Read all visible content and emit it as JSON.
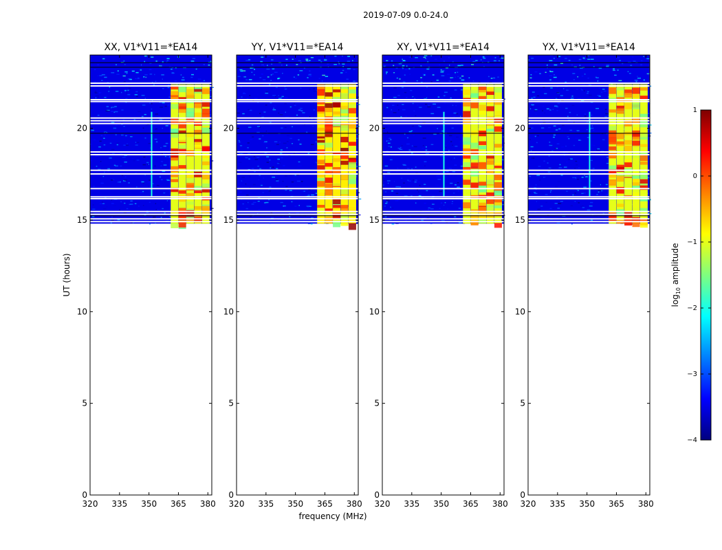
{
  "figure": {
    "suptitle": "2019-07-09 0.0-24.0",
    "xlabel": "frequency (MHz)",
    "ylabel": "UT (hours)"
  },
  "chart_data": {
    "type": "heatmap",
    "xlim": [
      320,
      382
    ],
    "ylim": [
      0,
      24
    ],
    "xticks": [
      320,
      335,
      350,
      365,
      380
    ],
    "yticks": [
      0,
      5,
      10,
      15,
      20
    ],
    "data_time_range": [
      14.8,
      24.0
    ],
    "rfi_band_center_freqs": [
      363,
      367,
      371,
      375,
      379
    ],
    "panels": [
      {
        "title": "XX, V1*V11=*EA14",
        "dominant_log_amplitude": -3.5,
        "band_log_amplitude": -1.0,
        "peak_log_amplitude": 0.2
      },
      {
        "title": "YY, V1*V11=*EA14",
        "dominant_log_amplitude": -3.5,
        "band_log_amplitude": -0.8,
        "peak_log_amplitude": 0.5
      },
      {
        "title": "XY, V1*V11=*EA14",
        "dominant_log_amplitude": -3.5,
        "band_log_amplitude": -1.0,
        "peak_log_amplitude": 0.1
      },
      {
        "title": "YX, V1*V11=*EA14",
        "dominant_log_amplitude": -3.5,
        "band_log_amplitude": -1.0,
        "peak_log_amplitude": 0.1
      }
    ],
    "colorbar": {
      "label_base": "log",
      "label_sub": "10",
      "label_rest": " amplitude",
      "range": [
        -4,
        1
      ],
      "ticks": [
        1,
        0,
        -1,
        -2,
        -3,
        -4
      ],
      "tick_labels": [
        "1",
        "0",
        "−1",
        "−2",
        "−3",
        "−4"
      ],
      "colormap": [
        "#00007f",
        "#0000ff",
        "#007fff",
        "#00ffff",
        "#7fff7f",
        "#ffff00",
        "#ff7f00",
        "#ff0000",
        "#7f0000"
      ]
    }
  }
}
